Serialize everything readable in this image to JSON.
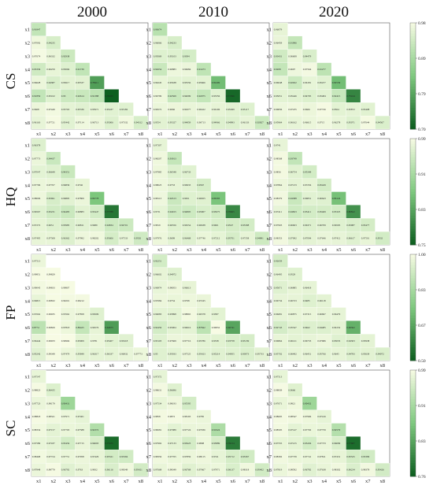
{
  "column_titles": [
    "2000",
    "2010",
    "2020"
  ],
  "row_titles": [
    "CS",
    "HQ",
    "FP",
    "SC"
  ],
  "variables": [
    "x1",
    "x2",
    "x3",
    "x4",
    "x5",
    "x6",
    "x7",
    "x8"
  ],
  "colorbars": [
    {
      "ticks": [
        "0.98",
        "0.89",
        "0.79",
        "0.70"
      ]
    },
    {
      "ticks": [
        "0.99",
        "0.91",
        "0.83",
        "0.75"
      ]
    },
    {
      "ticks": [
        "1.00",
        "0.83",
        "0.67",
        "0.50"
      ]
    },
    {
      "ticks": [
        "0.99",
        "0.91",
        "0.83",
        "0.76"
      ]
    }
  ],
  "colors": {
    "low": "#0b5d1e",
    "mid": "#7fc97f",
    "high": "#f7fbe4",
    "frame": "#555555"
  },
  "chart_data": {
    "type": "heatmap",
    "layout": "lower-triangular correlation matrices, 4 rows (CS, HQ, FP, SC) x 3 columns (2000, 2010, 2020)",
    "panels": [
      {
        "row": "CS",
        "col": "2000",
        "vmin": 0.7,
        "vmax": 0.98,
        "rows": [
          [
            0.91847
          ],
          [
            0.97092,
            0.94235
          ],
          [
            0.97674,
            0.96332,
            0.92938
          ],
          [
            0.93336,
            0.96259,
            0.95066,
            0.91739
          ],
          [
            0.96628,
            0.94387,
            0.95617,
            0.95537,
            0.78411
          ],
          [
            0.91859,
            0.95102,
            0.93,
            0.92614,
            0.91388,
            0.70225
          ],
          [
            0.9668,
            0.97449,
            0.95763,
            0.95336,
            0.95971,
            0.95437,
            0.95182
          ],
          [
            0.96163,
            0.97721,
            0.95442,
            0.97114,
            0.96713,
            0.95006,
            0.97332,
            0.94312
          ]
        ]
      },
      {
        "row": "CS",
        "col": "2010",
        "vmin": 0.7,
        "vmax": 0.98,
        "rows": [
          [
            0.90674
          ],
          [
            0.96066,
            0.94233
          ],
          [
            0.95069,
            0.95103,
            0.9394
          ],
          [
            0.92654,
            0.96883,
            0.96684,
            0.91473
          ],
          [
            0.96245,
            0.95638,
            0.95556,
            0.95666,
            0.82499
          ],
          [
            0.96799,
            0.92569,
            0.94099,
            0.92075,
            0.95356,
            0.71396
          ],
          [
            0.96572,
            0.9666,
            0.96377,
            0.96422,
            0.96106,
            0.95499,
            0.95117
          ],
          [
            0.9554,
            0.95327,
            0.94859,
            0.96713,
            0.94966,
            0.94993,
            0.96133,
            0.92827
          ]
        ]
      },
      {
        "row": "CS",
        "col": "2020",
        "vmin": 0.7,
        "vmax": 0.98,
        "rows": [
          [
            0.96079
          ],
          [
            0.96459,
            0.91996
          ],
          [
            0.93431,
            0.96608,
            0.94479
          ],
          [
            0.9208,
            0.9697,
            0.97564,
            0.91277
          ],
          [
            0.96048,
            0.92922,
            0.96181,
            0.95477,
            0.82539
          ],
          [
            0.95651,
            0.95446,
            0.94795,
            0.95484,
            0.92415,
            0.75164
          ],
          [
            0.96836,
            0.97235,
            0.9666,
            0.97726,
            0.9564,
            0.95872,
            0.95408
          ],
          [
            0.95964,
            0.96162,
            0.96615,
            0.9715,
            0.96278,
            0.95071,
            0.97644,
            0.94567
          ]
        ]
      },
      {
        "row": "HQ",
        "col": "2000",
        "vmin": 0.75,
        "vmax": 0.99,
        "rows": [
          [
            0.96378
          ],
          [
            0.97773,
            0.94437
          ],
          [
            0.97047,
            0.96649,
            0.94351
          ],
          [
            0.97796,
            0.97767,
            0.96839,
            0.9746
          ],
          [
            0.98006,
            0.95691,
            0.96895,
            0.97809,
            0.86778
          ],
          [
            0.96567,
            0.95231,
            0.94483,
            0.96883,
            0.95447,
            0.77788
          ],
          [
            0.97272,
            0.9651,
            0.95985,
            0.96811,
            0.9689,
            0.94834,
            0.94701
          ],
          [
            0.97495,
            0.97508,
            0.96362,
            0.97992,
            0.98202,
            0.95606,
            0.97533,
            0.9502
          ]
        ]
      },
      {
        "row": "HQ",
        "col": "2010",
        "vmin": 0.75,
        "vmax": 0.99,
        "rows": [
          [
            0.97307
          ],
          [
            0.98207,
            0.93913
          ],
          [
            0.97985,
            0.96548,
            0.96733
          ],
          [
            0.98023,
            0.9733,
            0.96933,
            0.9567
          ],
          [
            0.98113,
            0.94513,
            0.9651,
            0.96655,
            0.86583
          ],
          [
            0.9731,
            0.94915,
            0.94805,
            0.95907,
            0.95075,
            0.79665
          ],
          [
            0.9819,
            0.96556,
            0.96554,
            0.96638,
            0.9601,
            0.9547,
            0.95398
          ],
          [
            0.97976,
            0.9699,
            0.96468,
            0.97746,
            0.97212,
            0.95701,
            0.97358,
            0.94891
          ]
        ]
      },
      {
        "row": "HQ",
        "col": "2020",
        "vmin": 0.75,
        "vmax": 0.99,
        "rows": [
          [
            0.9741
          ],
          [
            0.98568,
            0.93749
          ],
          [
            0.9856,
            0.96754,
            0.95349
          ],
          [
            0.97864,
            0.97133,
            0.97256,
            0.95429
          ],
          [
            0.98379,
            0.94388,
            0.96831,
            0.96643,
            0.86124
          ],
          [
            0.97411,
            0.94823,
            0.95411,
            0.95469,
            0.95325,
            0.80822
          ],
          [
            0.97903,
            0.96603,
            0.96371,
            0.96709,
            0.96595,
            0.95987,
            0.95477
          ],
          [
            0.98353,
            0.97092,
            0.97094,
            0.97646,
            0.97412,
            0.96617,
            0.97501,
            0.9532
          ]
        ]
      },
      {
        "row": "FP",
        "col": "2000",
        "vmin": 0.5,
        "vmax": 1.0,
        "rows": [
          [
            0.97513
          ],
          [
            0.99851,
            0.99829
          ],
          [
            0.99045,
            0.99833,
            0.99807
          ],
          [
            0.96815,
            0.99832,
            0.99201,
            0.99212
          ],
          [
            0.97662,
            0.99935,
            0.97662,
            0.97858,
            0.95009
          ],
          [
            0.8774,
            0.99829,
            0.97818,
            0.89425,
            0.96576,
            0.64675
          ],
          [
            0.96444,
            0.99933,
            0.99966,
            0.95909,
            0.9781,
            0.95407,
            0.95218
          ],
          [
            0.95242,
            0.99349,
            0.97479,
            0.95849,
            0.96317,
            0.96337,
            0.96932,
            0.97773
          ]
        ]
      },
      {
        "row": "FP",
        "col": "2010",
        "vmin": 0.5,
        "vmax": 1.0,
        "rows": [
          [
            0.92251
          ],
          [
            0.96602,
            0.94972
          ],
          [
            0.96974,
            0.98053,
            0.96613
          ],
          [
            0.97684,
            0.9734,
            0.9798,
            0.97245
          ],
          [
            0.96083,
            0.95898,
            0.98865,
            0.96378,
            0.9587
          ],
          [
            0.92459,
            0.95904,
            0.96016,
            0.87842,
            0.99952,
            0.66741
          ],
          [
            0.95103,
            0.97669,
            0.97716,
            0.95786,
            0.9538,
            0.93758,
            0.93139
          ],
          [
            0.95,
            0.95933,
            0.97525,
            0.95423,
            0.95214,
            0.94955,
            0.93973,
            0.95733
          ]
        ]
      },
      {
        "row": "FP",
        "col": "2020",
        "vmin": 0.5,
        "vmax": 1.0,
        "rows": [
          [
            0.92659
          ],
          [
            0.96495,
            0.9529
          ],
          [
            0.95071,
            0.96885,
            0.96418
          ],
          [
            0.96734,
            0.96723,
            0.9485,
            0.96118
          ],
          [
            0.96681,
            0.96875,
            0.97315,
            0.96697,
            0.96479
          ],
          [
            0.92743,
            0.95547,
            0.9462,
            0.94485,
            0.96152,
            0.69362
          ],
          [
            0.96864,
            0.96121,
            0.96733,
            0.97686,
            0.95035,
            0.94303,
            0.95938
          ],
          [
            0.95702,
            0.96492,
            0.96451,
            0.95766,
            0.9645,
            0.94783,
            0.95639,
            0.94072
          ]
        ]
      },
      {
        "row": "SC",
        "col": "2000",
        "vmin": 0.76,
        "vmax": 0.99,
        "rows": [
          [
            0.97547
          ],
          [
            0.98823,
            0.96435
          ],
          [
            0.97723,
            0.98179,
            0.90431
          ],
          [
            0.98818,
            0.98321,
            0.97971,
            0.97401
          ],
          [
            0.98334,
            0.97157,
            0.97793,
            0.97588,
            0.92372
          ],
          [
            0.97589,
            0.97187,
            0.95456,
            0.97715,
            0.96093,
            0.77475
          ],
          [
            0.98468,
            0.97724,
            0.97751,
            0.97958,
            0.97429,
            0.95521,
            0.95394
          ],
          [
            0.97848,
            0.98779,
            0.96792,
            0.9763,
            0.9832,
            0.96116,
            0.98349,
            0.95421
          ]
        ]
      },
      {
        "row": "SC",
        "col": "2010",
        "vmin": 0.76,
        "vmax": 0.99,
        "rows": [
          [
            0.97372
          ],
          [
            0.98631,
            0.96696
          ],
          [
            0.97534,
            0.98193,
            0.95595
          ],
          [
            0.9858,
            0.9872,
            0.98193,
            0.9785
          ],
          [
            0.98281,
            0.97089,
            0.97724,
            0.97936,
            0.91924
          ],
          [
            0.97992,
            0.97133,
            0.95623,
            0.9808,
            0.95889,
            0.79154
          ],
          [
            0.98356,
            0.97765,
            0.97859,
            0.98115,
            0.9741,
            0.95712,
            0.95367
          ],
          [
            0.97668,
            0.98349,
            0.96768,
            0.97667,
            0.97971,
            0.96137,
            0.98318,
            0.95402
          ]
        ]
      },
      {
        "row": "SC",
        "col": "2020",
        "vmin": 0.76,
        "vmax": 0.99,
        "rows": [
          [
            0.97513
          ],
          [
            0.98839,
            0.9666
          ],
          [
            0.97671,
            0.9821,
            0.90432
          ],
          [
            0.98605,
            0.98547,
            0.97996,
            0.97416
          ],
          [
            0.98505,
            0.97147,
            0.97792,
            0.97759,
            0.92579
          ],
          [
            0.97555,
            0.97215,
            0.95436,
            0.97733,
            0.96099,
            0.77687
          ],
          [
            0.98392,
            0.97739,
            0.97741,
            0.97811,
            0.97431,
            0.95525,
            0.95399
          ],
          [
            0.97819,
            0.98592,
            0.96782,
            0.97638,
            0.98302,
            0.96234,
            0.98378,
            0.95426
          ]
        ]
      }
    ]
  }
}
